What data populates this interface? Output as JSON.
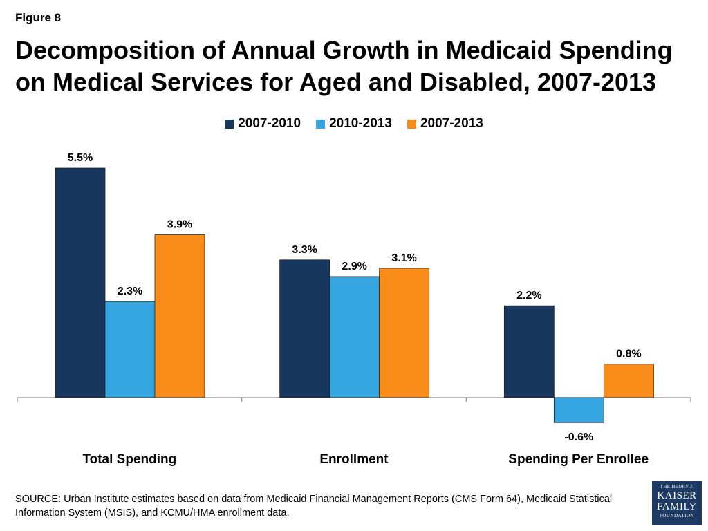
{
  "figure_label": "Figure 8",
  "title": "Decomposition of Annual Growth in Medicaid Spending on Medical Services for Aged and Disabled, 2007-2013",
  "source": "SOURCE: Urban Institute estimates based on data from Medicaid Financial Management Reports (CMS Form 64), Medicaid Statistical Information System (MSIS), and KCMU/HMA enrollment data.",
  "logo": {
    "line1": "THE HENRY J.",
    "line2": "KAISER",
    "line3": "FAMILY",
    "line4": "FOUNDATION"
  },
  "chart_data": {
    "type": "bar",
    "categories": [
      "Total Spending",
      "Enrollment",
      "Spending Per Enrollee"
    ],
    "series": [
      {
        "name": "2007-2010",
        "values": [
          5.5,
          3.3,
          2.2
        ],
        "labels": [
          "5.5%",
          "3.3%",
          "2.2%"
        ],
        "color": "#17375e"
      },
      {
        "name": "2010-2013",
        "values": [
          2.3,
          2.9,
          -0.6
        ],
        "labels": [
          "2.3%",
          "2.9%",
          "-0.6%"
        ],
        "color": "#35a5e1"
      },
      {
        "name": "2007-2013",
        "values": [
          3.9,
          3.1,
          0.8
        ],
        "labels": [
          "3.9%",
          "3.1%",
          "0.8%"
        ],
        "color": "#f98b18"
      }
    ],
    "ylim": [
      -0.6,
      5.5
    ],
    "unit": "%",
    "legend_position": "top-center",
    "grid": false
  }
}
